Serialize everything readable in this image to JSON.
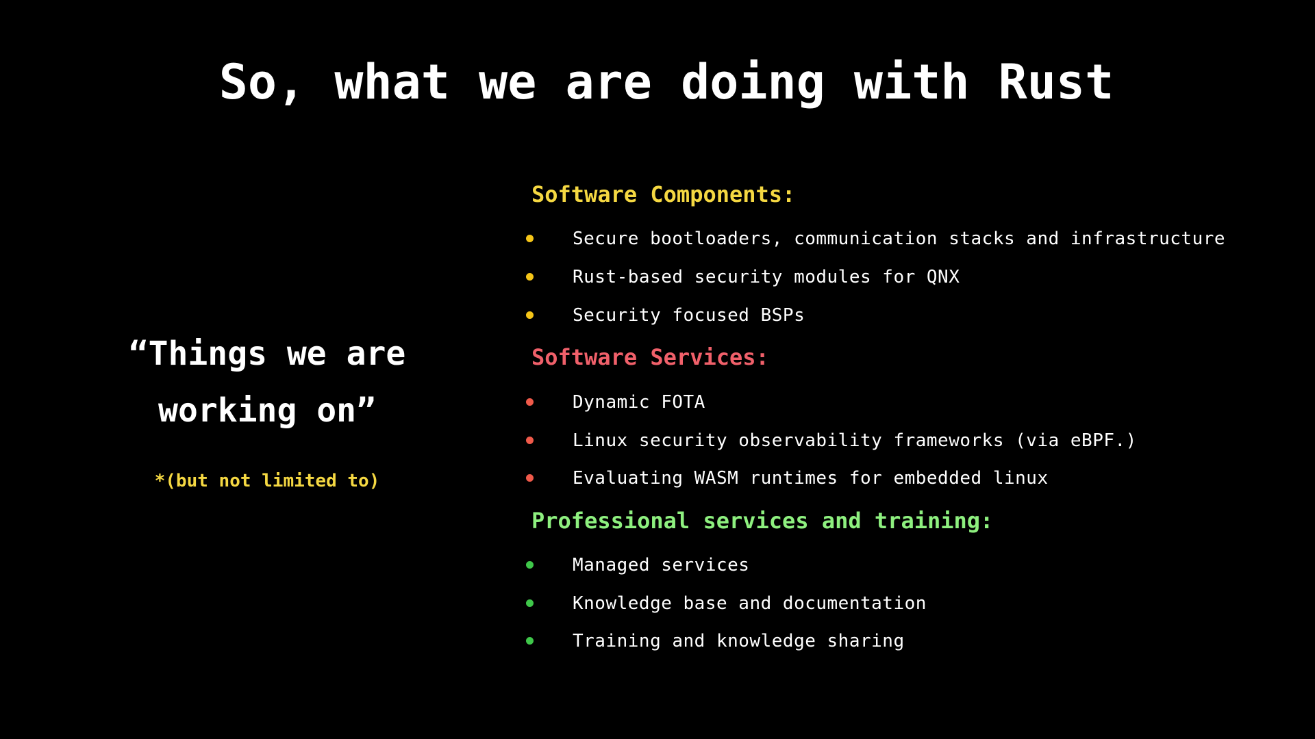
{
  "slide": {
    "title": "So, what we are doing with Rust",
    "quote_line1": "“Things we are",
    "quote_line2": "working on”",
    "note": "*(but not limited to)"
  },
  "colors": {
    "background": "#000000",
    "text": "#ffffff",
    "note": "#f5d842",
    "components": "#f5d842",
    "services": "#f0606a",
    "professional": "#8ef07f",
    "components_bullet": "#f5c518",
    "services_bullet": "#f05a4a",
    "professional_bullet": "#3fc74a"
  },
  "sections": [
    {
      "heading": "Software Components:",
      "items": [
        "Secure bootloaders, communication stacks and infrastructure",
        "Rust-based security modules for QNX",
        "Security focused BSPs"
      ]
    },
    {
      "heading": "Software Services:",
      "items": [
        "Dynamic FOTA",
        "Linux security observability frameworks (via eBPF.)",
        "Evaluating WASM runtimes for embedded linux"
      ]
    },
    {
      "heading": "Professional services and training:",
      "items": [
        "Managed services",
        "Knowledge base and documentation",
        "Training and knowledge sharing"
      ]
    }
  ]
}
